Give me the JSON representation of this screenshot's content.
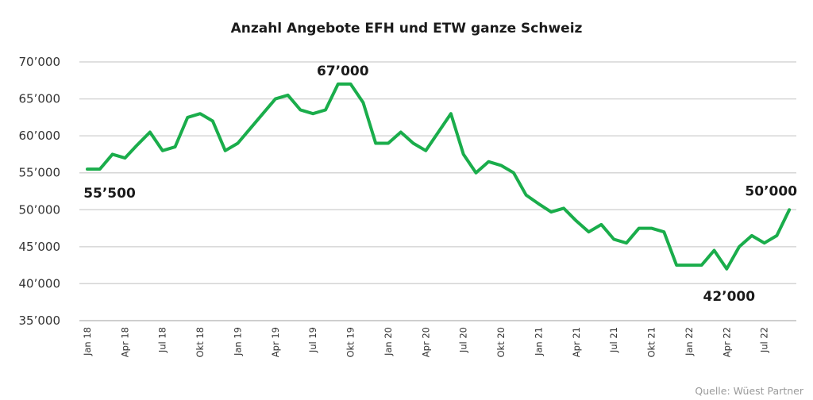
{
  "chart_data": {
    "type": "line",
    "title": "Anzahl Angebote EFH und ETW ganze Schweiz",
    "ylim": [
      35000,
      70000
    ],
    "y_ticks": [
      70000,
      65000,
      60000,
      55000,
      50000,
      45000,
      40000,
      35000
    ],
    "y_tick_labels": [
      "70’000",
      "65’000",
      "60’000",
      "55’000",
      "50’000",
      "45’000",
      "40’000",
      "35’000"
    ],
    "x_tick_labels": [
      "Jan 18",
      "Apr 18",
      "Jul 18",
      "Okt 18",
      "Jan 19",
      "Apr 19",
      "Jul 19",
      "Okt 19",
      "Jan 20",
      "Apr 20",
      "Jul 20",
      "Okt 20",
      "Jan 21",
      "Apr 21",
      "Jul 21",
      "Okt 21",
      "Jan 22",
      "Apr 22",
      "Jul 22"
    ],
    "grid": true,
    "line_color": "#1aad4b",
    "x": [
      "Jan 18",
      "Feb 18",
      "Mär 18",
      "Apr 18",
      "Mai 18",
      "Jun 18",
      "Jul 18",
      "Aug 18",
      "Sep 18",
      "Okt 18",
      "Nov 18",
      "Dez 18",
      "Jan 19",
      "Feb 19",
      "Mär 19",
      "Apr 19",
      "Mai 19",
      "Jun 19",
      "Jul 19",
      "Aug 19",
      "Sep 19",
      "Okt 19",
      "Nov 19",
      "Dez 19",
      "Jan 20",
      "Feb 20",
      "Mär 20",
      "Apr 20",
      "Mai 20",
      "Jun 20",
      "Jul 20",
      "Aug 20",
      "Sep 20",
      "Okt 20",
      "Nov 20",
      "Dez 20",
      "Jan 21",
      "Feb 21",
      "Mär 21",
      "Apr 21",
      "Mai 21",
      "Jun 21",
      "Jul 21",
      "Aug 21",
      "Sep 21",
      "Okt 21",
      "Nov 21",
      "Dez 21",
      "Jan 22",
      "Feb 22",
      "Mär 22",
      "Apr 22",
      "Mai 22",
      "Jun 22",
      "Jul 22",
      "Aug 22",
      "Sep 22"
    ],
    "values": [
      55500,
      55500,
      57500,
      57000,
      58800,
      60500,
      58000,
      58500,
      62500,
      63000,
      62000,
      58000,
      59000,
      61000,
      63000,
      65000,
      65500,
      63500,
      63000,
      63500,
      67000,
      67000,
      64500,
      59000,
      59000,
      60500,
      59000,
      58000,
      60500,
      63000,
      57500,
      55000,
      56500,
      56000,
      55000,
      52000,
      50800,
      49700,
      50200,
      48500,
      47000,
      48000,
      46000,
      45500,
      47500,
      47500,
      47000,
      42500,
      42500,
      42500,
      44500,
      42000,
      45000,
      46500,
      45500,
      46500,
      50000
    ],
    "annotations": [
      {
        "text": "55’500",
        "index": 0
      },
      {
        "text": "67’000",
        "index": 20
      },
      {
        "text": "42’000",
        "index": 51
      },
      {
        "text": "50’000",
        "index": 56
      }
    ],
    "source": "Quelle: Wüest Partner"
  }
}
